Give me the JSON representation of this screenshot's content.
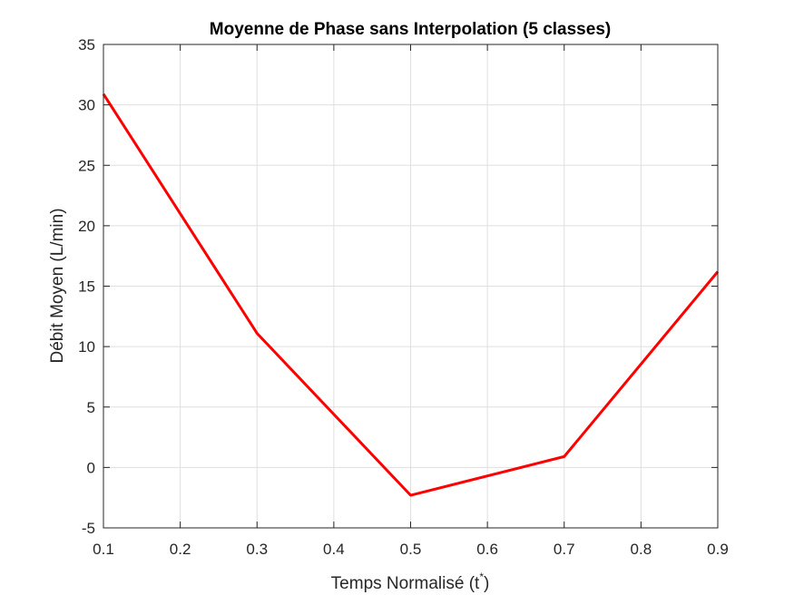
{
  "chart_data": {
    "type": "line",
    "title": "Moyenne de Phase sans Interpolation (5 classes)",
    "xlabel": {
      "main": "Temps Normalisé (t",
      "sup": "*",
      "close": ")"
    },
    "ylabel": "Débit Moyen (L/min)",
    "xlim": [
      0.1,
      0.9
    ],
    "ylim": [
      -5,
      35
    ],
    "xticks": [
      0.1,
      0.2,
      0.3,
      0.4,
      0.5,
      0.6,
      0.7,
      0.8,
      0.9
    ],
    "xtick_labels": [
      "0.1",
      "0.2",
      "0.3",
      "0.4",
      "0.5",
      "0.6",
      "0.7",
      "0.8",
      "0.9"
    ],
    "yticks": [
      -5,
      0,
      5,
      10,
      15,
      20,
      25,
      30,
      35
    ],
    "ytick_labels": [
      "-5",
      "0",
      "5",
      "10",
      "15",
      "20",
      "25",
      "30",
      "35"
    ],
    "grid": true,
    "series": [
      {
        "color": "#ff0000",
        "x": [
          0.1,
          0.3,
          0.5,
          0.7,
          0.9
        ],
        "y": [
          30.9,
          11.1,
          -2.3,
          0.9,
          16.2
        ]
      }
    ]
  }
}
